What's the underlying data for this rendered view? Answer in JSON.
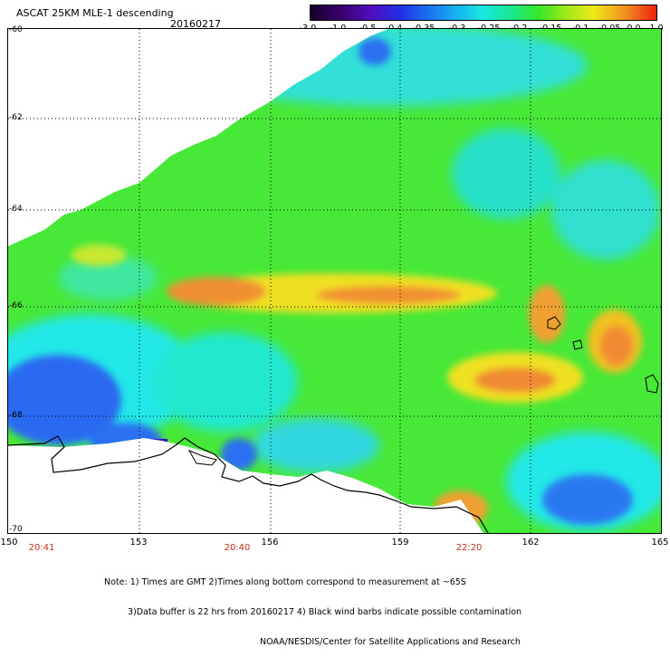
{
  "header": {
    "title": "ASCAT 25KM MLE-1 descending",
    "date": "20160217"
  },
  "colorbar": {
    "labels": [
      "-3.0",
      "-1.0",
      "-0.5",
      "-0.4",
      "-0.35",
      "-0.3",
      "-0.25",
      "-0.2",
      "-0.15",
      "-0.1",
      "-0.05",
      "0.0",
      "1.0"
    ],
    "colors": [
      "#1a0030",
      "#3a0070",
      "#5a00b0",
      "#2a2ae0",
      "#1a6cf0",
      "#18a8f0",
      "#18e0e8",
      "#18e8a0",
      "#40e830",
      "#90e820",
      "#e0e820",
      "#f0a020",
      "#f04010"
    ]
  },
  "map": {
    "latitudes": [
      "-60",
      "-62",
      "-64",
      "-66",
      "-68",
      "-70"
    ],
    "longitudes": [
      "150",
      "153",
      "156",
      "159",
      "162",
      "165"
    ],
    "times": [
      "20:41",
      "20:40",
      "22:20"
    ],
    "lat_range": [
      -70,
      -60
    ],
    "lon_range": [
      150,
      165
    ],
    "grid": true,
    "value_legend": {
      "blue": "#2a6af0",
      "cyan": "#20e8e8",
      "green": "#48e838",
      "yellow": "#f0e020",
      "orange": "#f09030",
      "purple": "#3a10c0"
    }
  },
  "notes": {
    "line1": "Note: 1) Times are GMT 2)Times along bottom correspond to measurement at ~65S",
    "line2": "3)Data buffer is 22 hrs from 20160217 4) Black wind barbs indicate possible contamination",
    "line3": "NOAA/NESDIS/Center for Satellite Applications and Research"
  }
}
